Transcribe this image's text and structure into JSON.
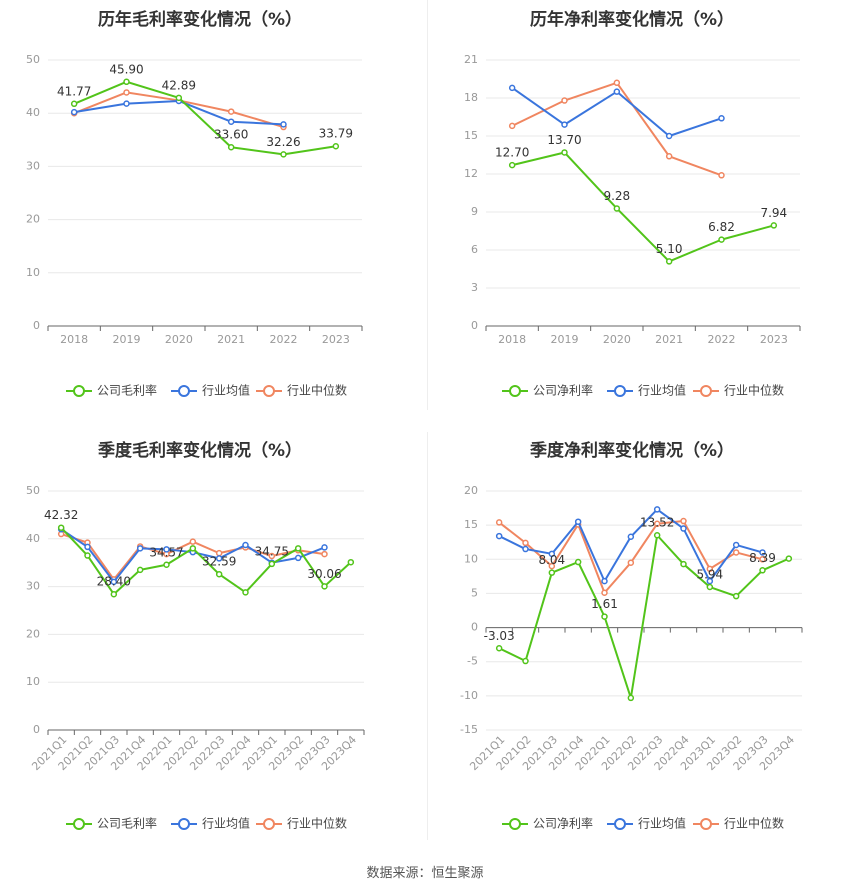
{
  "colors": {
    "company": "#52c41a",
    "industry_avg": "#3a75dd",
    "industry_median": "#f08660",
    "axis": "#999999",
    "grid": "#e8e8e8"
  },
  "source_note": "数据来源：恒生聚源",
  "chart_data": [
    {
      "type": "line",
      "title": "历年毛利率变化情况（%）",
      "categories": [
        "2018",
        "2019",
        "2020",
        "2021",
        "2022",
        "2023"
      ],
      "ylim": [
        0,
        50
      ],
      "yticks": [
        0,
        10,
        20,
        30,
        40,
        50
      ],
      "series": [
        {
          "name": "公司毛利率",
          "key": "company",
          "values": [
            41.77,
            45.9,
            42.89,
            33.6,
            32.26,
            33.79
          ],
          "labels": [
            "41.77",
            "45.90",
            "42.89",
            "33.60",
            "32.26",
            "33.79"
          ]
        },
        {
          "name": "行业均值",
          "key": "industry_avg",
          "values": [
            40.2,
            41.8,
            42.3,
            38.4,
            37.9,
            null
          ]
        },
        {
          "name": "行业中位数",
          "key": "industry_median",
          "values": [
            40.0,
            43.9,
            42.4,
            40.3,
            37.4,
            null
          ]
        }
      ],
      "legend": "bottom",
      "grid": true
    },
    {
      "type": "line",
      "title": "历年净利率变化情况（%）",
      "categories": [
        "2018",
        "2019",
        "2020",
        "2021",
        "2022",
        "2023"
      ],
      "ylim": [
        0,
        21
      ],
      "yticks": [
        0,
        3,
        6,
        9,
        12,
        15,
        18,
        21
      ],
      "series": [
        {
          "name": "公司净利率",
          "key": "company",
          "values": [
            12.7,
            13.7,
            9.28,
            5.1,
            6.82,
            7.94
          ],
          "labels": [
            "12.70",
            "13.70",
            "9.28",
            "5.10",
            "6.82",
            "7.94"
          ]
        },
        {
          "name": "行业均值",
          "key": "industry_avg",
          "values": [
            18.8,
            15.9,
            18.5,
            15.0,
            16.4,
            null
          ]
        },
        {
          "name": "行业中位数",
          "key": "industry_median",
          "values": [
            15.8,
            17.8,
            19.2,
            13.4,
            11.9,
            null
          ]
        }
      ],
      "legend": "bottom",
      "grid": true
    },
    {
      "type": "line",
      "title": "季度毛利率变化情况（%）",
      "categories": [
        "2021Q1",
        "2021Q2",
        "2021Q3",
        "2021Q4",
        "2022Q1",
        "2022Q2",
        "2022Q3",
        "2022Q4",
        "2023Q1",
        "2023Q2",
        "2023Q3",
        "2023Q4"
      ],
      "ylim": [
        0,
        50
      ],
      "yticks": [
        0,
        10,
        20,
        30,
        40,
        50
      ],
      "rotated_x_labels": true,
      "series": [
        {
          "name": "公司毛利率",
          "key": "company",
          "values": [
            42.32,
            36.5,
            28.4,
            33.5,
            34.57,
            38.0,
            32.59,
            28.8,
            34.75,
            38.0,
            30.06,
            35.1
          ],
          "labels": [
            "42.32",
            "",
            "28.40",
            "",
            "34.57",
            "",
            "32.59",
            "",
            "34.75",
            "",
            "30.06",
            ""
          ]
        },
        {
          "name": "行业均值",
          "key": "industry_avg",
          "values": [
            42.0,
            38.3,
            31.0,
            38.0,
            37.8,
            37.2,
            35.9,
            38.7,
            35.0,
            36.0,
            38.2,
            null
          ]
        },
        {
          "name": "行业中位数",
          "key": "industry_median",
          "values": [
            41.0,
            39.2,
            31.5,
            38.4,
            36.8,
            39.4,
            37.0,
            38.2,
            36.4,
            37.6,
            36.8,
            null
          ]
        }
      ],
      "legend": "bottom",
      "grid": true
    },
    {
      "type": "line",
      "title": "季度净利率变化情况（%）",
      "categories": [
        "2021Q1",
        "2021Q2",
        "2021Q3",
        "2021Q4",
        "2022Q1",
        "2022Q2",
        "2022Q3",
        "2022Q4",
        "2023Q1",
        "2023Q2",
        "2023Q3",
        "2023Q4"
      ],
      "ylim": [
        -15,
        20
      ],
      "yticks": [
        -15,
        -10,
        -5,
        0,
        5,
        10,
        15,
        20
      ],
      "rotated_x_labels": true,
      "series": [
        {
          "name": "公司净利率",
          "key": "company",
          "values": [
            -3.03,
            -4.9,
            8.04,
            9.6,
            1.61,
            -10.3,
            13.52,
            9.3,
            5.94,
            4.6,
            8.39,
            10.1
          ],
          "labels": [
            "-3.03",
            "",
            "8.04",
            "",
            "1.61",
            "",
            "13.52",
            "",
            "5.94",
            "",
            "8.39",
            ""
          ]
        },
        {
          "name": "行业均值",
          "key": "industry_avg",
          "values": [
            13.4,
            11.5,
            10.8,
            15.5,
            6.8,
            13.3,
            17.3,
            14.5,
            6.8,
            12.1,
            11.0,
            null
          ]
        },
        {
          "name": "行业中位数",
          "key": "industry_median",
          "values": [
            15.4,
            12.4,
            9.0,
            15.1,
            5.1,
            9.5,
            15.2,
            15.6,
            8.6,
            11.0,
            10.0,
            null
          ]
        }
      ],
      "legend": "bottom",
      "grid": true
    }
  ]
}
